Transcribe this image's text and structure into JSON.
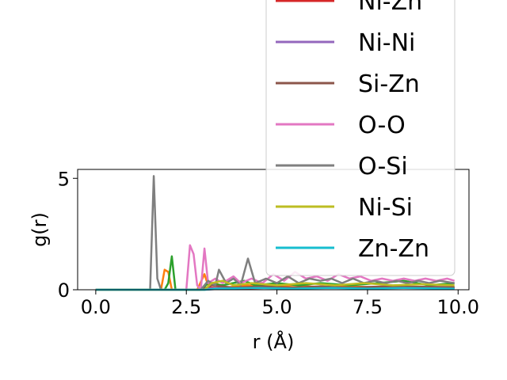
{
  "chart_data": {
    "type": "line",
    "xlabel": "r (Å)",
    "ylabel": "g(r)",
    "xlim": [
      -0.5,
      10.3
    ],
    "ylim": [
      0,
      5.4
    ],
    "x_ticks": [
      {
        "value": 0.0,
        "label": "0.0"
      },
      {
        "value": 2.5,
        "label": "2.5"
      },
      {
        "value": 5.0,
        "label": "5.0"
      },
      {
        "value": 7.5,
        "label": "7.5"
      },
      {
        "value": 10.0,
        "label": "10.0"
      }
    ],
    "y_ticks": [
      {
        "value": 0,
        "label": "0"
      },
      {
        "value": 5,
        "label": "5"
      }
    ],
    "grid": false,
    "legend_placement": "top-right",
    "series": [
      {
        "name": "",
        "color": "#1f77b4",
        "points": [
          [
            0,
            0
          ],
          [
            1.5,
            0
          ],
          [
            3.0,
            0
          ],
          [
            3.5,
            0.05
          ],
          [
            4.5,
            0.1
          ],
          [
            5.5,
            0.08
          ],
          [
            6.5,
            0.1
          ],
          [
            7.5,
            0.08
          ],
          [
            8.5,
            0.1
          ],
          [
            9.9,
            0.08
          ]
        ]
      },
      {
        "name": "",
        "color": "#ff7f0e",
        "points": [
          [
            0,
            0
          ],
          [
            1.8,
            0
          ],
          [
            1.9,
            0.9
          ],
          [
            2.0,
            0.8
          ],
          [
            2.1,
            0
          ],
          [
            2.8,
            0
          ],
          [
            3.0,
            0.7
          ],
          [
            3.1,
            0.2
          ],
          [
            3.3,
            0.3
          ],
          [
            3.6,
            0.1
          ],
          [
            4.2,
            0.2
          ],
          [
            4.8,
            0.15
          ],
          [
            5.5,
            0.2
          ],
          [
            6.3,
            0.1
          ],
          [
            7.0,
            0.15
          ],
          [
            8.0,
            0.1
          ],
          [
            9.0,
            0.12
          ],
          [
            9.9,
            0.1
          ]
        ]
      },
      {
        "name": "",
        "color": "#2ca02c",
        "points": [
          [
            0,
            0
          ],
          [
            1.9,
            0
          ],
          [
            2.0,
            0.3
          ],
          [
            2.1,
            1.5
          ],
          [
            2.2,
            0
          ],
          [
            2.9,
            0
          ],
          [
            3.1,
            0.3
          ],
          [
            3.5,
            0.2
          ],
          [
            4.1,
            0.4
          ],
          [
            4.4,
            0.2
          ],
          [
            5.0,
            0.3
          ],
          [
            5.6,
            0.2
          ],
          [
            6.2,
            0.3
          ],
          [
            7.0,
            0.2
          ],
          [
            7.8,
            0.3
          ],
          [
            8.5,
            0.4
          ],
          [
            9.2,
            0.2
          ],
          [
            9.9,
            0.3
          ]
        ]
      },
      {
        "name": "Ni-Zn",
        "color": "#d62728",
        "points": [
          [
            0,
            0
          ],
          [
            2.9,
            0
          ],
          [
            3.1,
            0.1
          ],
          [
            4.0,
            0.05
          ],
          [
            5.0,
            0.1
          ],
          [
            6.0,
            0.08
          ],
          [
            7.0,
            0.1
          ],
          [
            8.0,
            0.08
          ],
          [
            9.9,
            0.1
          ]
        ]
      },
      {
        "name": "Ni-Ni",
        "color": "#9467bd",
        "points": [
          [
            0,
            0
          ],
          [
            2.8,
            0
          ],
          [
            3.0,
            0.05
          ],
          [
            4.0,
            0.1
          ],
          [
            5.0,
            0.08
          ],
          [
            6.0,
            0.1
          ],
          [
            7.0,
            0.08
          ],
          [
            8.0,
            0.1
          ],
          [
            9.9,
            0.08
          ]
        ]
      },
      {
        "name": "Si-Zn",
        "color": "#8c564b",
        "points": [
          [
            0,
            0
          ],
          [
            2.9,
            0
          ],
          [
            3.2,
            0.2
          ],
          [
            3.8,
            0.1
          ],
          [
            4.6,
            0.15
          ],
          [
            5.4,
            0.1
          ],
          [
            6.2,
            0.15
          ],
          [
            7.0,
            0.1
          ],
          [
            8.0,
            0.15
          ],
          [
            9.9,
            0.12
          ]
        ]
      },
      {
        "name": "O-O",
        "color": "#e377c2",
        "points": [
          [
            0,
            0
          ],
          [
            2.5,
            0
          ],
          [
            2.6,
            2.0
          ],
          [
            2.7,
            1.6
          ],
          [
            2.8,
            0.2
          ],
          [
            2.9,
            0
          ],
          [
            3.0,
            1.85
          ],
          [
            3.1,
            0.3
          ],
          [
            3.3,
            0.5
          ],
          [
            3.5,
            0.3
          ],
          [
            3.8,
            0.6
          ],
          [
            4.0,
            0.3
          ],
          [
            4.3,
            0.5
          ],
          [
            4.6,
            0.3
          ],
          [
            4.9,
            0.7
          ],
          [
            5.2,
            0.4
          ],
          [
            5.5,
            0.8
          ],
          [
            5.8,
            0.5
          ],
          [
            6.1,
            0.6
          ],
          [
            6.4,
            0.4
          ],
          [
            6.7,
            0.7
          ],
          [
            7.0,
            0.5
          ],
          [
            7.3,
            0.6
          ],
          [
            7.6,
            0.4
          ],
          [
            7.9,
            0.5
          ],
          [
            8.2,
            0.4
          ],
          [
            8.5,
            0.5
          ],
          [
            8.8,
            0.4
          ],
          [
            9.1,
            0.5
          ],
          [
            9.4,
            0.4
          ],
          [
            9.7,
            0.5
          ],
          [
            9.9,
            0.4
          ]
        ]
      },
      {
        "name": "O-Si",
        "color": "#7f7f7f",
        "points": [
          [
            0,
            0
          ],
          [
            1.5,
            0
          ],
          [
            1.6,
            5.1
          ],
          [
            1.7,
            0.5
          ],
          [
            1.8,
            0
          ],
          [
            2.9,
            0
          ],
          [
            3.1,
            0.4
          ],
          [
            3.3,
            0.2
          ],
          [
            3.4,
            0.9
          ],
          [
            3.6,
            0.3
          ],
          [
            3.8,
            0.5
          ],
          [
            4.0,
            0.2
          ],
          [
            4.2,
            1.4
          ],
          [
            4.4,
            0.3
          ],
          [
            4.7,
            0.5
          ],
          [
            5.0,
            0.3
          ],
          [
            5.3,
            0.6
          ],
          [
            5.6,
            0.3
          ],
          [
            5.9,
            0.5
          ],
          [
            6.2,
            0.4
          ],
          [
            6.5,
            0.5
          ],
          [
            6.8,
            0.3
          ],
          [
            7.1,
            0.5
          ],
          [
            7.4,
            0.3
          ],
          [
            7.7,
            0.4
          ],
          [
            8.0,
            0.3
          ],
          [
            8.3,
            0.4
          ],
          [
            8.6,
            0.3
          ],
          [
            8.9,
            0.4
          ],
          [
            9.2,
            0.3
          ],
          [
            9.5,
            0.4
          ],
          [
            9.9,
            0.3
          ]
        ]
      },
      {
        "name": "Ni-Si",
        "color": "#bcbd22",
        "points": [
          [
            0,
            0
          ],
          [
            3.0,
            0
          ],
          [
            3.2,
            0.3
          ],
          [
            3.5,
            0.4
          ],
          [
            3.8,
            0.2
          ],
          [
            4.3,
            0.3
          ],
          [
            5.0,
            0.2
          ],
          [
            5.8,
            0.3
          ],
          [
            6.6,
            0.2
          ],
          [
            7.4,
            0.3
          ],
          [
            8.2,
            0.2
          ],
          [
            9.0,
            0.25
          ],
          [
            9.9,
            0.2
          ]
        ]
      },
      {
        "name": "Zn-Zn",
        "color": "#17becf",
        "points": [
          [
            0,
            0
          ],
          [
            3.0,
            0
          ],
          [
            3.3,
            0.05
          ],
          [
            4.5,
            0.08
          ],
          [
            5.5,
            0.05
          ],
          [
            6.5,
            0.08
          ],
          [
            7.5,
            0.05
          ],
          [
            8.5,
            0.08
          ],
          [
            9.9,
            0.05
          ]
        ]
      }
    ]
  }
}
